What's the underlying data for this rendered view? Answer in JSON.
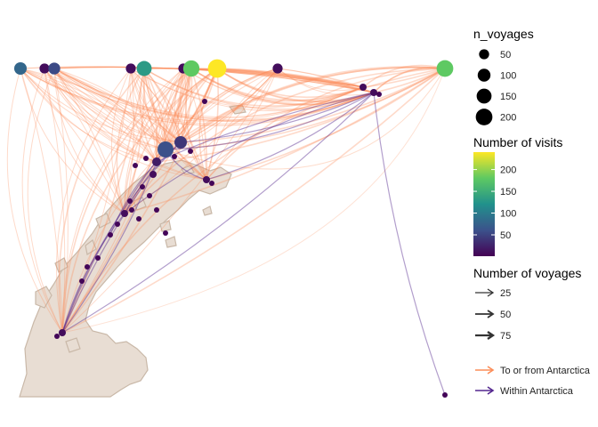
{
  "legend": {
    "size_title": "n_voyages",
    "size_items": [
      {
        "label": "50",
        "value": 50
      },
      {
        "label": "100",
        "value": 100
      },
      {
        "label": "150",
        "value": 150
      },
      {
        "label": "200",
        "value": 200
      }
    ],
    "color_title": "Number of visits",
    "color_ticks": [
      {
        "label": "200",
        "value": 200
      },
      {
        "label": "150",
        "value": 150
      },
      {
        "label": "100",
        "value": 100
      },
      {
        "label": "50",
        "value": 50
      }
    ],
    "color_range": [
      1,
      240
    ],
    "viridis": [
      "#440154",
      "#3b528b",
      "#21918c",
      "#5ec962",
      "#fde725"
    ],
    "width_title": "Number of voyages",
    "width_items": [
      {
        "label": "25",
        "value": 25
      },
      {
        "label": "50",
        "value": 50
      },
      {
        "label": "75",
        "value": 75
      }
    ],
    "type_items": [
      {
        "label": "To or from Antarctica",
        "color": "#fc8d59"
      },
      {
        "label": "Within Antarctica",
        "color": "#54278f"
      }
    ]
  },
  "map": {
    "land_color": "#e8ddd3",
    "land_stroke": "#c9b8a8",
    "to_from_color": "#fc8d59",
    "within_color": "#54278f"
  },
  "chart_data": {
    "type": "scatter",
    "title": "",
    "description_none": true,
    "ports": [
      {
        "id": "p1",
        "visits": 80,
        "n_voyages": 60
      },
      {
        "id": "p2",
        "visits": 10,
        "n_voyages": 25
      },
      {
        "id": "p3",
        "visits": 55,
        "n_voyages": 50
      },
      {
        "id": "p4",
        "visits": 10,
        "n_voyages": 25
      },
      {
        "id": "p5",
        "visits": 130,
        "n_voyages": 110
      },
      {
        "id": "p6",
        "visits": 10,
        "n_voyages": 25
      },
      {
        "id": "p7",
        "visits": 180,
        "n_voyages": 140
      },
      {
        "id": "p8",
        "visits": 240,
        "n_voyages": 200
      },
      {
        "id": "p9",
        "visits": 10,
        "n_voyages": 25
      },
      {
        "id": "p10",
        "visits": 180,
        "n_voyages": 150
      }
    ]
  }
}
